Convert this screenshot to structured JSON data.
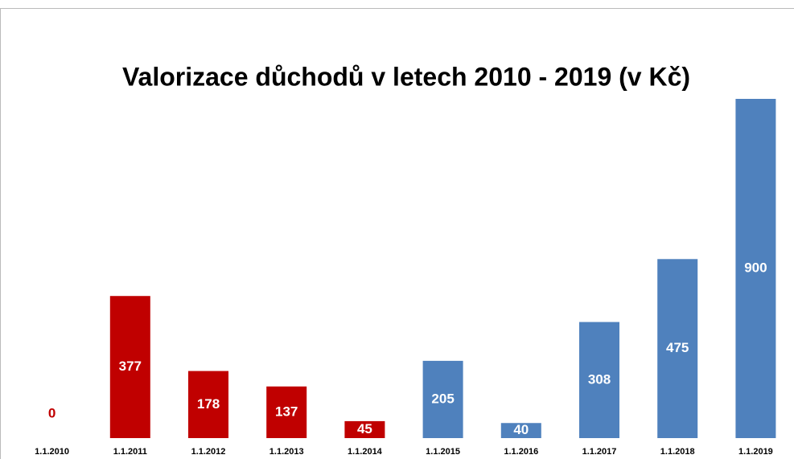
{
  "chart_data": {
    "type": "bar",
    "title": "Valorizace důchodů v letech 2010 - 2019 (v Kč)",
    "categories": [
      "1.1.2010",
      "1.1.2011",
      "1.1.2012",
      "1.1.2013",
      "1.1.2014",
      "1.1.2015",
      "1.1.2016",
      "1.1.2017",
      "1.1.2018",
      "1.1.2019"
    ],
    "values": [
      0,
      377,
      178,
      137,
      45,
      205,
      40,
      308,
      475,
      900
    ],
    "colors": [
      "#c00000",
      "#c00000",
      "#c00000",
      "#c00000",
      "#c00000",
      "#4f81bd",
      "#4f81bd",
      "#4f81bd",
      "#4f81bd",
      "#4f81bd"
    ],
    "ylim": [
      0,
      900
    ]
  }
}
